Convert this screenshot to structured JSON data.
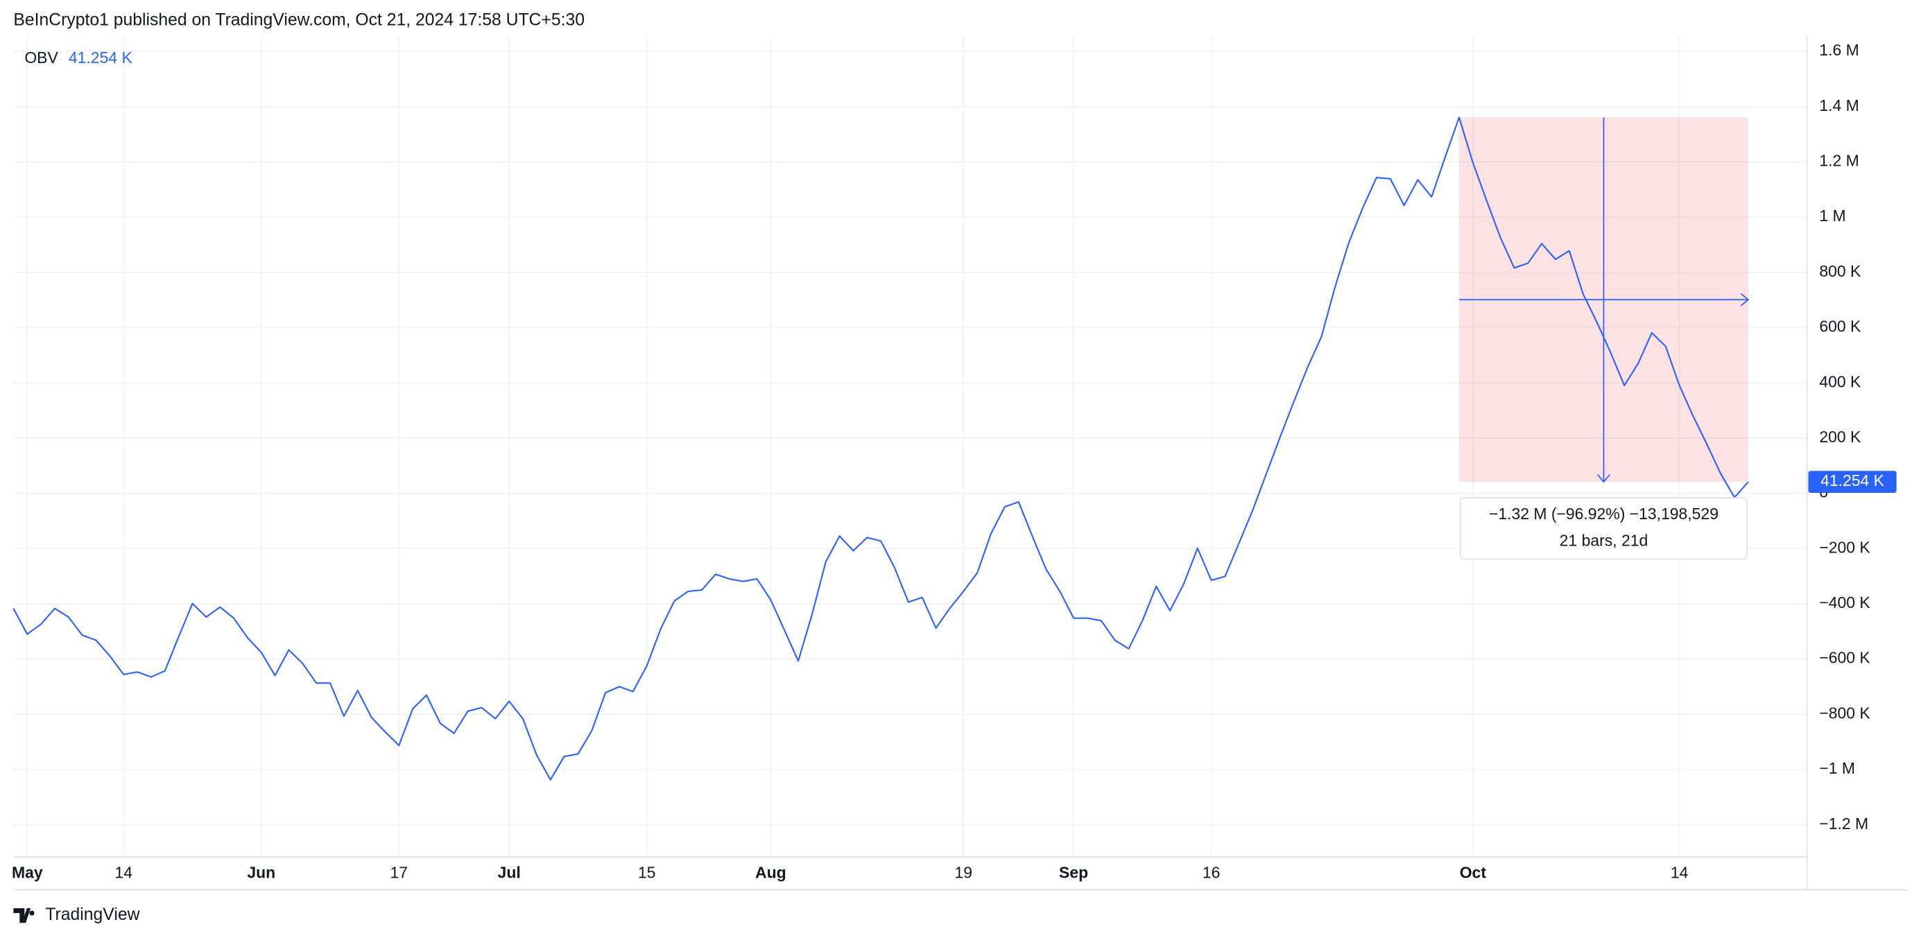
{
  "header": "BeInCrypto1 published on TradingView.com, Oct 21, 2024 17:58 UTC+5:30",
  "footer": "TradingView",
  "chart_data": {
    "type": "line",
    "series": [
      {
        "name": "OBV",
        "color": "#2962ff",
        "values": [
          -417000,
          -510000,
          -474000,
          -417000,
          -448000,
          -514000,
          -532000,
          -589000,
          -656000,
          -647000,
          -665000,
          -643000,
          -519000,
          -399000,
          -448000,
          -412000,
          -452000,
          -523000,
          -576000,
          -660000,
          -567000,
          -616000,
          -687000,
          -687000,
          -807000,
          -714000,
          -811000,
          -864000,
          -913000,
          -780000,
          -731000,
          -833000,
          -869000,
          -789000,
          -776000,
          -816000,
          -753000,
          -816000,
          -948000,
          -1037000,
          -953000,
          -944000,
          -860000,
          -722000,
          -700000,
          -718000,
          -625000,
          -492000,
          -390000,
          -355000,
          -350000,
          -293000,
          -310000,
          -319000,
          -310000,
          -386000,
          -496000,
          -607000,
          -439000,
          -248000,
          -155000,
          -208000,
          -160000,
          -173000,
          -270000,
          -394000,
          -377000,
          -488000,
          -417000,
          -355000,
          -288000,
          -146000,
          -49000,
          -31000,
          -155000,
          -275000,
          -355000,
          -452000,
          -452000,
          -461000,
          -532000,
          -563000,
          -461000,
          -337000,
          -425000,
          -328000,
          -199000,
          -315000,
          -301000,
          -182000,
          -62000,
          71000,
          204000,
          332000,
          457000,
          567000,
          749000,
          909000,
          1033000,
          1143000,
          1139000,
          1042000,
          1135000,
          1073000,
          1219000,
          1361000,
          1197000,
          1059000,
          926000,
          816000,
          833000,
          904000,
          847000,
          878000,
          722000,
          620000,
          510000,
          390000,
          470000,
          581000,
          532000,
          390000,
          279000,
          177000,
          71000,
          -15000,
          41254
        ]
      }
    ],
    "categories": [
      null,
      "May",
      null,
      null,
      null,
      null,
      null,
      null,
      "14",
      null,
      null,
      null,
      null,
      null,
      null,
      null,
      null,
      null,
      "Jun",
      null,
      null,
      null,
      null,
      null,
      null,
      null,
      null,
      null,
      "17",
      null,
      null,
      null,
      null,
      null,
      null,
      null,
      "Jul",
      null,
      null,
      null,
      null,
      null,
      null,
      null,
      null,
      null,
      "15",
      null,
      null,
      null,
      null,
      null,
      null,
      null,
      null,
      "Aug",
      null,
      null,
      null,
      null,
      null,
      null,
      null,
      null,
      null,
      null,
      null,
      null,
      null,
      "19",
      null,
      null,
      null,
      null,
      null,
      null,
      null,
      "Sep",
      null,
      null,
      null,
      null,
      null,
      null,
      null,
      null,
      null,
      "16",
      null,
      null,
      null,
      null,
      null,
      null,
      null,
      null,
      null,
      null,
      null,
      null,
      null,
      null,
      null,
      null,
      null,
      null,
      "Oct",
      null,
      null,
      null,
      null,
      null,
      null,
      null,
      null,
      null,
      null,
      null,
      null,
      null,
      null,
      "14",
      null,
      null,
      null,
      null,
      null
    ],
    "ylim": [
      -1316000,
      1653000
    ],
    "yticks": [
      {
        "value": -1200000,
        "label": "−1.2 M"
      },
      {
        "value": -1000000,
        "label": "−1 M"
      },
      {
        "value": -800000,
        "label": "−800 K"
      },
      {
        "value": -600000,
        "label": "−600 K"
      },
      {
        "value": -400000,
        "label": "−400 K"
      },
      {
        "value": -200000,
        "label": "−200 K"
      },
      0,
      {
        "value": 200000,
        "label": "200 K"
      },
      {
        "value": 400000,
        "label": "400 K"
      },
      {
        "value": 600000,
        "label": "600 K"
      },
      {
        "value": 800000,
        "label": "800 K"
      },
      {
        "value": 1000000,
        "label": "1 M"
      },
      {
        "value": 1200000,
        "label": "1.2 M"
      },
      {
        "value": 1400000,
        "label": "1.4 M"
      },
      {
        "value": 1600000,
        "label": "1.6 M"
      }
    ],
    "grid": true,
    "last_value_label": "41.254 K",
    "measurement": {
      "start": 105,
      "end": 126,
      "text": "−1.32 M (−96.92%) −13,198,529",
      "detail": "21 bars, 21d"
    }
  }
}
